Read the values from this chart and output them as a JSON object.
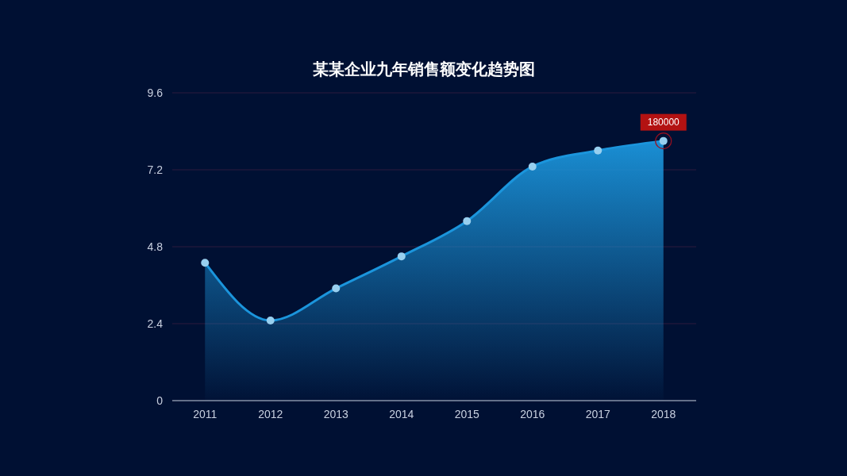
{
  "chart_data": {
    "type": "area",
    "title": "某某企业九年销售额变化趋势图",
    "categories": [
      "2011",
      "2012",
      "2013",
      "2014",
      "2015",
      "2016",
      "2017",
      "2018"
    ],
    "series": [
      {
        "color": "#1b95dc",
        "values": [
          4.3,
          2.5,
          3.5,
          4.5,
          5.6,
          7.3,
          7.8,
          8.1
        ]
      }
    ],
    "ylim": [
      0,
      9.6
    ],
    "yticks": [
      0,
      2.4,
      4.8,
      7.2,
      9.6
    ],
    "grid": "y",
    "marker": "circle",
    "annotations": [
      {
        "text": "180000",
        "x": "2018",
        "y": 8.1
      }
    ]
  }
}
